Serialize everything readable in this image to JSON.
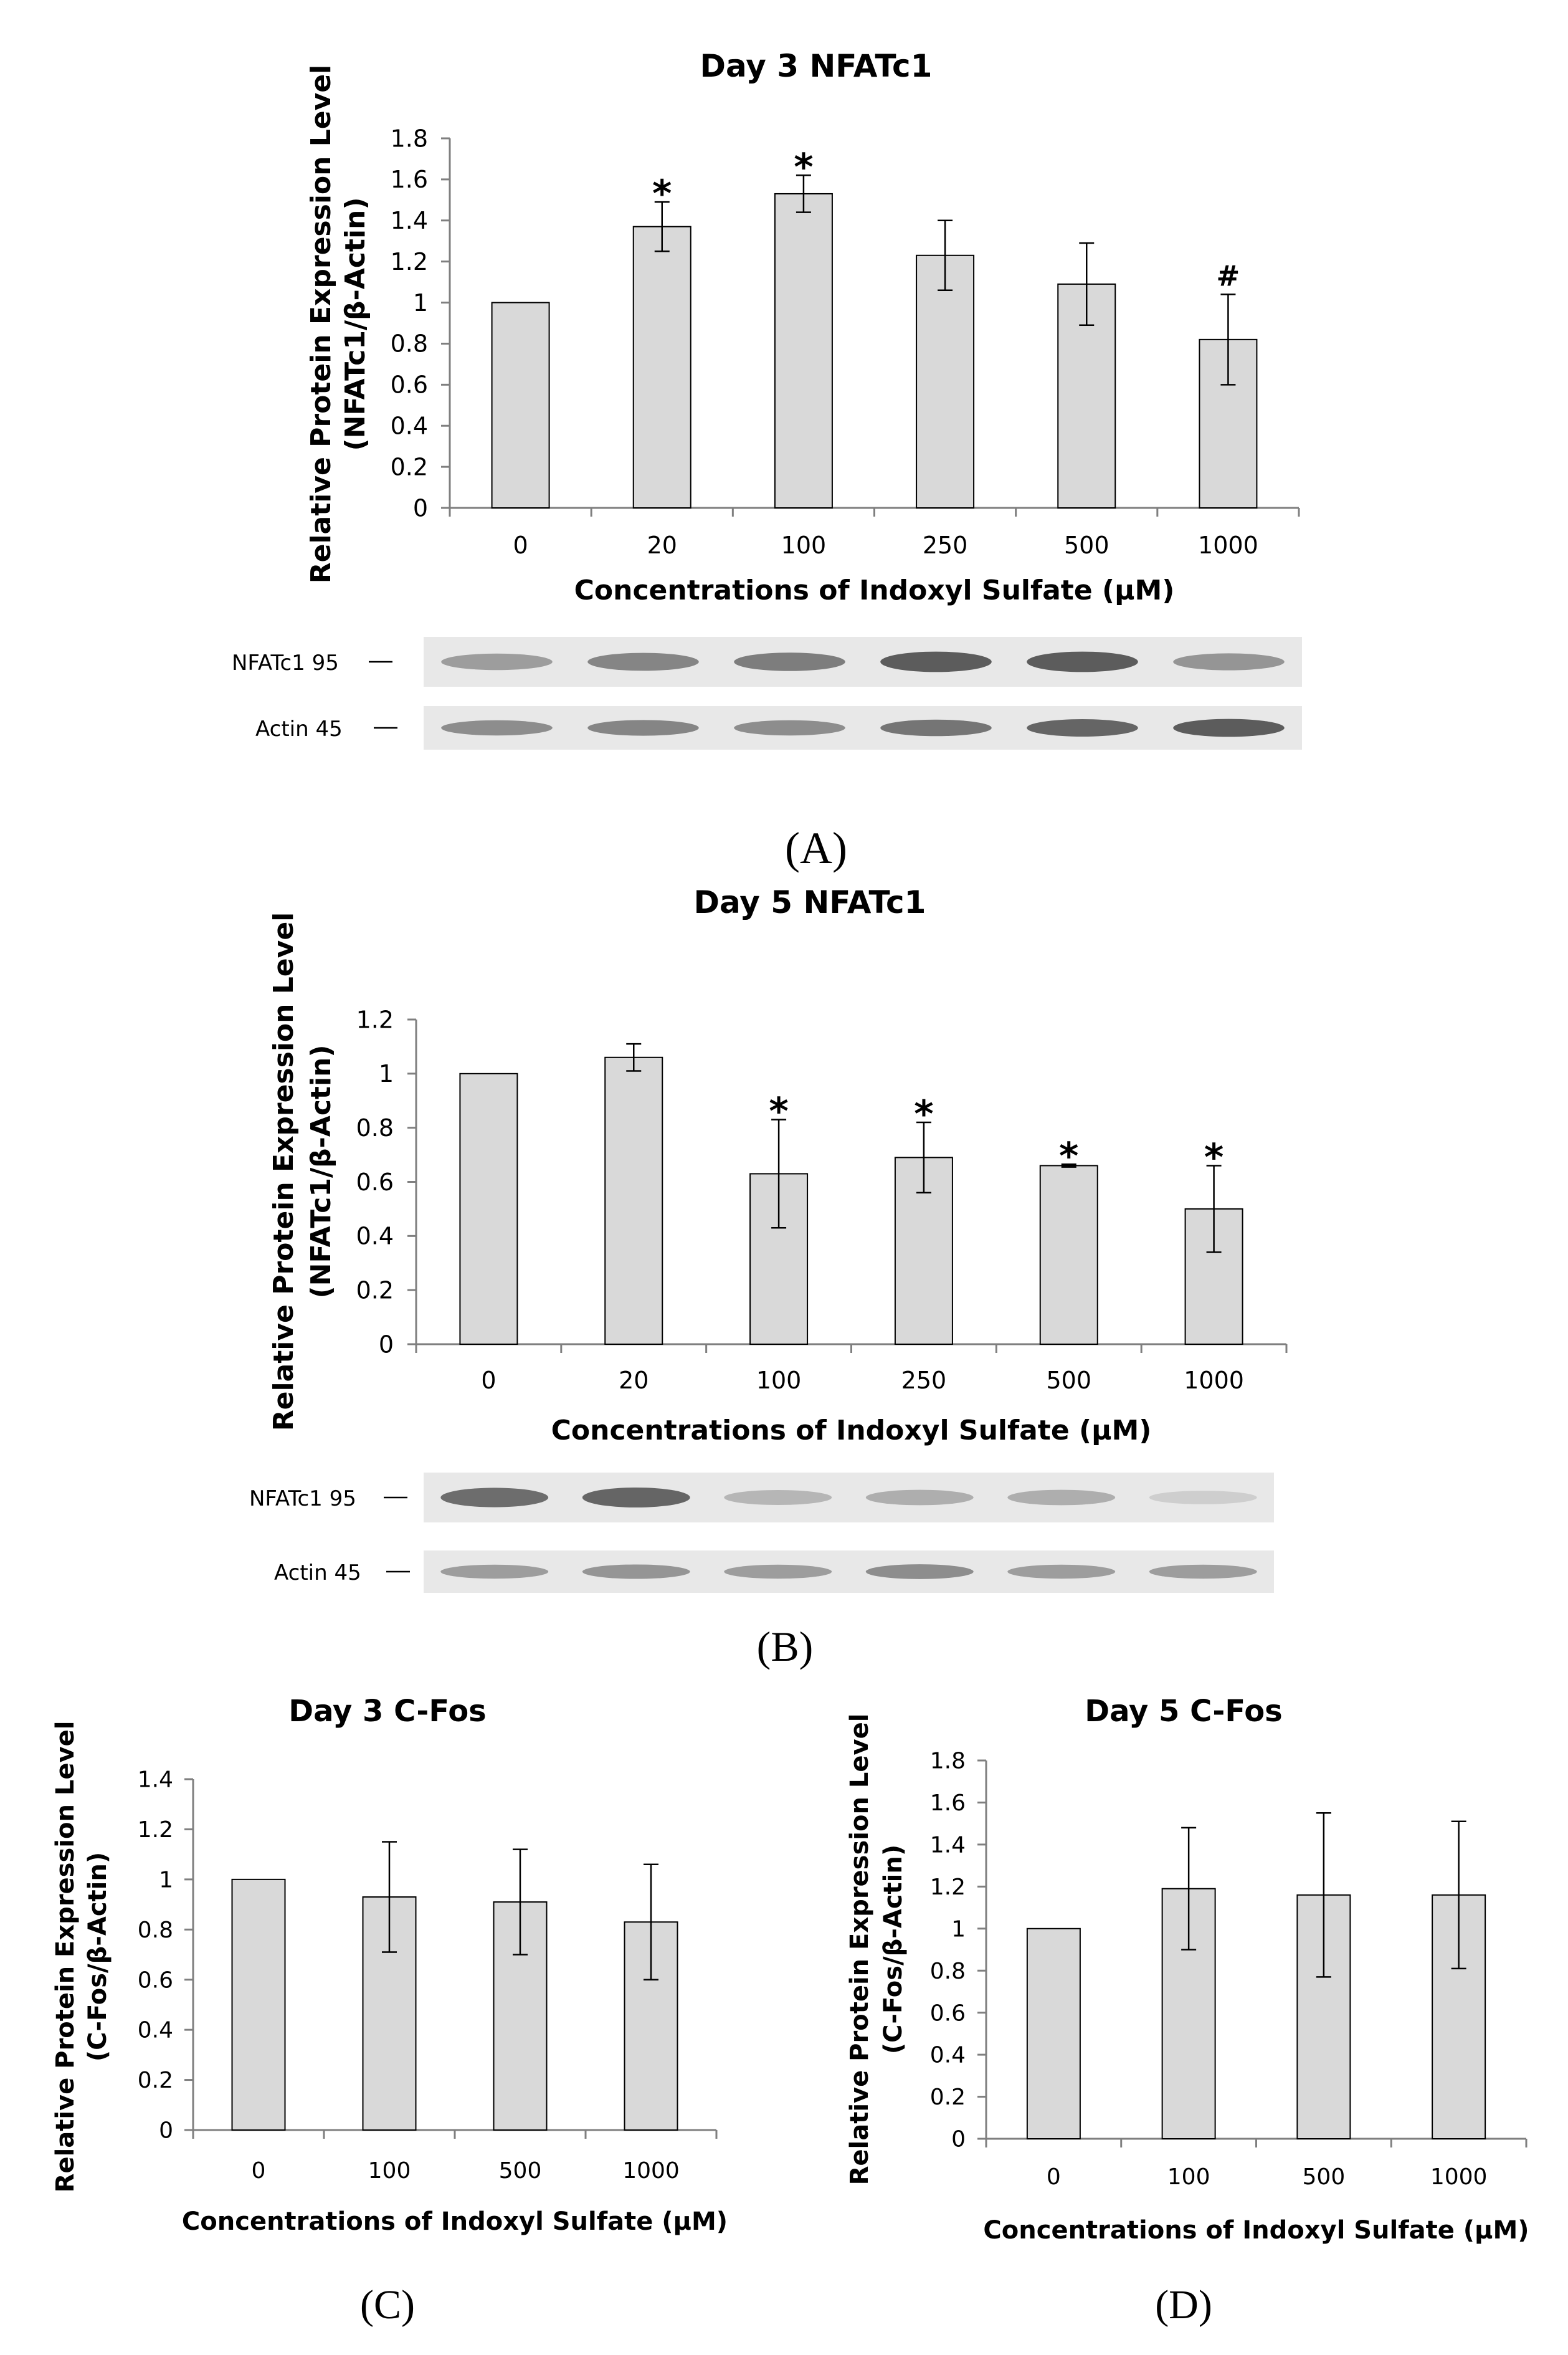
{
  "chart_data": [
    {
      "id": "A",
      "type": "bar",
      "title": "Day 3 NFATc1",
      "xlabel": "Concentrations of Indoxyl Sulfate (μM)",
      "ylabel_line1": "Relative Protein Expression Level",
      "ylabel_line2": "(NFATc1/β-Actin)",
      "ylim": [
        0,
        1.8
      ],
      "yticks": [
        0,
        0.2,
        0.4,
        0.6,
        0.8,
        1,
        1.2,
        1.4,
        1.6,
        1.8
      ],
      "ytick_labels": [
        "0",
        "0.2",
        "0.4",
        "0.6",
        "0.8",
        "1",
        "1.2",
        "1.4",
        "1.6",
        "1.8"
      ],
      "categories": [
        "0",
        "20",
        "100",
        "250",
        "500",
        "1000"
      ],
      "values": [
        1.0,
        1.37,
        1.53,
        1.23,
        1.09,
        0.82
      ],
      "errors": [
        0,
        0.12,
        0.09,
        0.17,
        0.2,
        0.22
      ],
      "annotations": [
        "",
        "*",
        "*",
        "",
        "",
        "#"
      ],
      "panel_label": "(A)",
      "blot": {
        "rows": [
          {
            "label": "NFATc1 95",
            "intensity": [
              0.45,
              0.6,
              0.65,
              0.85,
              0.85,
              0.5
            ]
          },
          {
            "label": "Actin 45",
            "intensity": [
              0.55,
              0.6,
              0.55,
              0.7,
              0.8,
              0.85
            ]
          }
        ]
      }
    },
    {
      "id": "B",
      "type": "bar",
      "title": "Day 5 NFATc1",
      "xlabel": "Concentrations of Indoxyl Sulfate (μM)",
      "ylabel_line1": "Relative Protein Expression Level",
      "ylabel_line2": "(NFATc1/β-Actin)",
      "ylim": [
        0,
        1.2
      ],
      "yticks": [
        0,
        0.2,
        0.4,
        0.6,
        0.8,
        1,
        1.2
      ],
      "ytick_labels": [
        "0",
        "0.2",
        "0.4",
        "0.6",
        "0.8",
        "1",
        "1.2"
      ],
      "categories": [
        "0",
        "20",
        "100",
        "250",
        "500",
        "1000"
      ],
      "values": [
        1.0,
        1.06,
        0.63,
        0.69,
        0.66,
        0.5
      ],
      "errors": [
        0,
        0.05,
        0.2,
        0.13,
        0.005,
        0.16
      ],
      "annotations": [
        "",
        "",
        "*",
        "*",
        "*",
        "*"
      ],
      "panel_label": "(B)",
      "blot": {
        "rows": [
          {
            "label": "NFATc1 95",
            "intensity": [
              0.75,
              0.8,
              0.3,
              0.35,
              0.35,
              0.15
            ]
          },
          {
            "label": "Actin 45",
            "intensity": [
              0.45,
              0.5,
              0.45,
              0.55,
              0.45,
              0.45
            ]
          }
        ]
      }
    },
    {
      "id": "C",
      "type": "bar",
      "title": "Day 3 C-Fos",
      "xlabel": "Concentrations of Indoxyl Sulfate (μM)",
      "ylabel_line1": "Relative Protein Expression Level",
      "ylabel_line2": "(C-Fos/β-Actin)",
      "ylim": [
        0,
        1.4
      ],
      "yticks": [
        0,
        0.2,
        0.4,
        0.6,
        0.8,
        1,
        1.2,
        1.4
      ],
      "ytick_labels": [
        "0",
        "0.2",
        "0.4",
        "0.6",
        "0.8",
        "1",
        "1.2",
        "1.4"
      ],
      "categories": [
        "0",
        "100",
        "500",
        "1000"
      ],
      "values": [
        1.0,
        0.93,
        0.91,
        0.83
      ],
      "errors": [
        0,
        0.22,
        0.21,
        0.23
      ],
      "annotations": [
        "",
        "",
        "",
        ""
      ],
      "panel_label": "(C)"
    },
    {
      "id": "D",
      "type": "bar",
      "title": "Day 5 C-Fos",
      "xlabel": "Concentrations of Indoxyl Sulfate (μM)",
      "ylabel_line1": "Relative Protein Expression Level",
      "ylabel_line2": "(C-Fos/β-Actin)",
      "ylim": [
        0,
        1.8
      ],
      "yticks": [
        0,
        0.2,
        0.4,
        0.6,
        0.8,
        1,
        1.2,
        1.4,
        1.6,
        1.8
      ],
      "ytick_labels": [
        "0",
        "0.2",
        "0.4",
        "0.6",
        "0.8",
        "1",
        "1.2",
        "1.4",
        "1.6",
        "1.8"
      ],
      "categories": [
        "0",
        "100",
        "500",
        "1000"
      ],
      "values": [
        1.0,
        1.19,
        1.16,
        1.16
      ],
      "errors": [
        0,
        0.29,
        0.39,
        0.35
      ],
      "annotations": [
        "",
        "",
        "",
        ""
      ],
      "panel_label": "(D)"
    }
  ],
  "colors": {
    "bar_fill": "#d9d9d9",
    "bar_stroke": "#000000",
    "axis": "#7f7f7f",
    "blot_background": "#e8e8e8"
  }
}
